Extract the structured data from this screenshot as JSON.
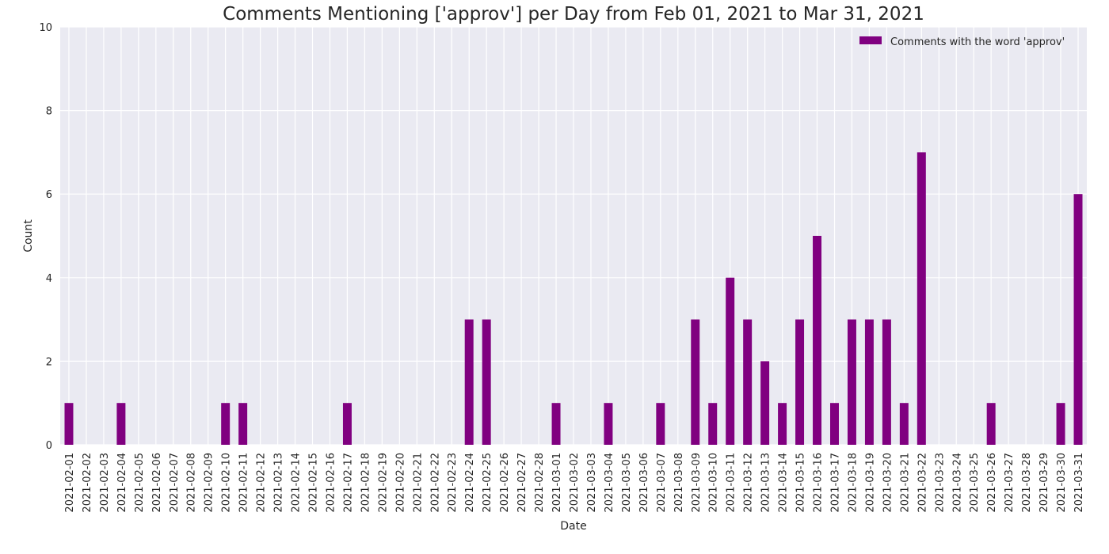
{
  "chart_data": {
    "type": "bar",
    "title": "Comments Mentioning ['approv'] per Day from Feb 01, 2021 to Mar 31, 2021",
    "xlabel": "Date",
    "ylabel": "Count",
    "ylim": [
      0,
      10
    ],
    "yticks": [
      0,
      2,
      4,
      6,
      8,
      10
    ],
    "grid": true,
    "legend_position": "top-right",
    "colors": {
      "bar": "#800080",
      "plot_background": "#eaeaf2",
      "grid": "#ffffff"
    },
    "categories": [
      "2021-02-01",
      "2021-02-02",
      "2021-02-03",
      "2021-02-04",
      "2021-02-05",
      "2021-02-06",
      "2021-02-07",
      "2021-02-08",
      "2021-02-09",
      "2021-02-10",
      "2021-02-11",
      "2021-02-12",
      "2021-02-13",
      "2021-02-14",
      "2021-02-15",
      "2021-02-16",
      "2021-02-17",
      "2021-02-18",
      "2021-02-19",
      "2021-02-20",
      "2021-02-21",
      "2021-02-22",
      "2021-02-23",
      "2021-02-24",
      "2021-02-25",
      "2021-02-26",
      "2021-02-27",
      "2021-02-28",
      "2021-03-01",
      "2021-03-02",
      "2021-03-03",
      "2021-03-04",
      "2021-03-05",
      "2021-03-06",
      "2021-03-07",
      "2021-03-08",
      "2021-03-09",
      "2021-03-10",
      "2021-03-11",
      "2021-03-12",
      "2021-03-13",
      "2021-03-14",
      "2021-03-15",
      "2021-03-16",
      "2021-03-17",
      "2021-03-18",
      "2021-03-19",
      "2021-03-20",
      "2021-03-21",
      "2021-03-22",
      "2021-03-23",
      "2021-03-24",
      "2021-03-25",
      "2021-03-26",
      "2021-03-27",
      "2021-03-28",
      "2021-03-29",
      "2021-03-30",
      "2021-03-31"
    ],
    "series": [
      {
        "name": "Comments with the word 'approv'",
        "values": [
          1,
          0,
          0,
          1,
          0,
          0,
          0,
          0,
          0,
          1,
          1,
          0,
          0,
          0,
          0,
          0,
          1,
          0,
          0,
          0,
          0,
          0,
          0,
          3,
          3,
          0,
          0,
          0,
          1,
          0,
          0,
          1,
          0,
          0,
          1,
          0,
          3,
          1,
          4,
          3,
          2,
          1,
          3,
          5,
          1,
          3,
          3,
          3,
          1,
          7,
          0,
          0,
          0,
          1,
          0,
          0,
          0,
          1,
          6
        ]
      }
    ]
  }
}
